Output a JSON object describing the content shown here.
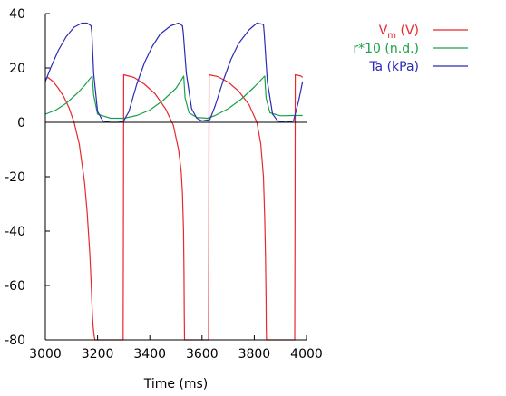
{
  "chart_data": {
    "type": "line",
    "xlabel": "Time (ms)",
    "ylabel": "",
    "xlim": [
      3000,
      4000
    ],
    "ylim": [
      -80,
      40
    ],
    "x_ticks": [
      3000,
      3200,
      3400,
      3600,
      3800,
      4000
    ],
    "y_ticks": [
      -80,
      -60,
      -40,
      -20,
      0,
      20,
      40
    ],
    "x_tick_labels": [
      "3000",
      "3200",
      "3400",
      "3600",
      "3800",
      "4000"
    ],
    "y_tick_labels": [
      "-80",
      "-60",
      "-40",
      "-20",
      "0",
      "20",
      "40"
    ],
    "zero_line": true,
    "grid": false,
    "legend_position": "top-right",
    "series": [
      {
        "name": "V_m (V)",
        "label_main": "V",
        "label_sub": "m",
        "label_rest": " (V)",
        "color": "#e8282d",
        "x": [
          3000,
          3010,
          3030,
          3050,
          3070,
          3090,
          3110,
          3130,
          3150,
          3160,
          3170,
          3175,
          3180,
          3183,
          3186,
          3188,
          3189,
          3190,
          3200,
          3250,
          3298,
          3299,
          3300,
          3340,
          3380,
          3420,
          3460,
          3490,
          3510,
          3520,
          3525,
          3529,
          3531,
          3532,
          3533,
          3560,
          3600,
          3625,
          3626,
          3627,
          3660,
          3700,
          3740,
          3780,
          3810,
          3825,
          3835,
          3840,
          3843,
          3845,
          3846,
          3847,
          3880,
          3920,
          3955,
          3956,
          3957,
          3980,
          3985
        ],
        "values": [
          16,
          16.5,
          15,
          12.5,
          9.5,
          5.5,
          0,
          -8,
          -22,
          -33,
          -48,
          -58,
          -70,
          -75,
          -78,
          -79,
          -79.5,
          -80,
          -80,
          -80,
          -80,
          -40,
          17.5,
          16.5,
          14,
          10.5,
          5,
          -1,
          -10,
          -18,
          -26,
          -40,
          -55,
          -70,
          -80,
          -80,
          -80,
          -80,
          -40,
          17.5,
          16.8,
          14.8,
          11.5,
          6.5,
          0,
          -8,
          -20,
          -35,
          -50,
          -65,
          -75,
          -80,
          -80,
          -80,
          -80,
          -40,
          17.5,
          17,
          16.5
        ]
      },
      {
        "name": "r*10 (n.d.)",
        "color": "#1aa04a",
        "x": [
          3000,
          3040,
          3080,
          3120,
          3150,
          3170,
          3180,
          3185,
          3200,
          3250,
          3300,
          3350,
          3400,
          3450,
          3500,
          3520,
          3530,
          3535,
          3550,
          3580,
          3620,
          3650,
          3700,
          3750,
          3800,
          3830,
          3840,
          3845,
          3860,
          3900,
          3950,
          3985
        ],
        "values": [
          3,
          4.5,
          7,
          10.5,
          13.5,
          16,
          17,
          10,
          3,
          1.5,
          1.5,
          2.5,
          4.5,
          8,
          12.5,
          15.5,
          17,
          9,
          3.5,
          1.8,
          1.5,
          2.5,
          5,
          8.5,
          13,
          16,
          17,
          9,
          3.5,
          2.4,
          2.5,
          2.5
        ]
      },
      {
        "name": "Ta (kPa)",
        "color": "#2b2bb5",
        "x": [
          3000,
          3020,
          3050,
          3080,
          3110,
          3140,
          3160,
          3175,
          3178,
          3185,
          3200,
          3220,
          3250,
          3280,
          3300,
          3320,
          3350,
          3380,
          3410,
          3440,
          3480,
          3510,
          3525,
          3528,
          3540,
          3560,
          3580,
          3600,
          3630,
          3650,
          3680,
          3710,
          3740,
          3780,
          3810,
          3835,
          3838,
          3850,
          3870,
          3890,
          3920,
          3950,
          3970,
          3985
        ],
        "values": [
          15,
          20,
          26.5,
          31.5,
          35,
          36.5,
          36.5,
          35.5,
          33,
          18,
          4,
          0.5,
          0,
          0,
          0.5,
          4,
          14,
          22,
          28,
          32.5,
          35.5,
          36.5,
          35.5,
          33,
          18,
          5,
          1.5,
          0.5,
          1,
          6,
          15,
          23,
          29,
          34,
          36.5,
          36,
          33,
          15,
          3,
          0.5,
          0,
          0.5,
          8,
          15
        ]
      }
    ]
  }
}
